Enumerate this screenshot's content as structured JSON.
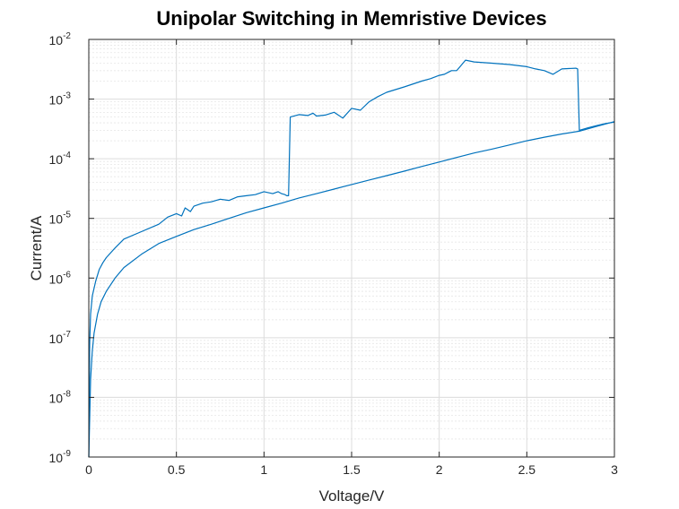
{
  "chart_data": {
    "type": "line",
    "title": "Unipolar Switching in Memristive Devices",
    "xlabel": "Voltage/V",
    "ylabel": "Current/A",
    "xlim": [
      0,
      3
    ],
    "ylim": [
      1e-09,
      0.01
    ],
    "yscale": "log",
    "grid": true,
    "minor_grid": true,
    "line_color": "#0072BD",
    "x_ticks": [
      "0",
      "0.5",
      "1",
      "1.5",
      "2",
      "2.5",
      "3"
    ],
    "x_tick_values": [
      0,
      0.5,
      1,
      1.5,
      2,
      2.5,
      3
    ],
    "y_tick_values": [
      1e-09,
      1e-08,
      1e-07,
      1e-06,
      1e-05,
      0.0001,
      0.001,
      0.01
    ],
    "y_tick_base": "10",
    "y_tick_exponents": [
      "-9",
      "-8",
      "-7",
      "-6",
      "-5",
      "-4",
      "-3",
      "-2"
    ],
    "series": [
      {
        "x": [
          0,
          0.005,
          0.01,
          0.02,
          0.04,
          0.06,
          0.08,
          0.1,
          0.15,
          0.2,
          0.3,
          0.4,
          0.45,
          0.5,
          0.53,
          0.55,
          0.58,
          0.6,
          0.65,
          0.7,
          0.75,
          0.8,
          0.85,
          0.9,
          0.95,
          1.0,
          1.05,
          1.08,
          1.1,
          1.12,
          1.13,
          1.14,
          1.15,
          1.2,
          1.25,
          1.28,
          1.3,
          1.35,
          1.4,
          1.45,
          1.5,
          1.55,
          1.6,
          1.65,
          1.7,
          1.8,
          1.9,
          1.95,
          2.0,
          2.03,
          2.05,
          2.07,
          2.1,
          2.15,
          2.2,
          2.3,
          2.4,
          2.5,
          2.55,
          2.6,
          2.65,
          2.7,
          2.78,
          2.79,
          2.8,
          2.85,
          2.9,
          2.95,
          3.0
        ],
        "y": [
          1e-09,
          8e-08,
          2.5e-07,
          5e-07,
          9e-07,
          1.4e-06,
          1.8e-06,
          2.2e-06,
          3.2e-06,
          4.5e-06,
          6e-06,
          8e-06,
          1.05e-05,
          1.2e-05,
          1.1e-05,
          1.5e-05,
          1.3e-05,
          1.6e-05,
          1.8e-05,
          1.9e-05,
          2.1e-05,
          2e-05,
          2.3e-05,
          2.4e-05,
          2.5e-05,
          2.8e-05,
          2.6e-05,
          2.8e-05,
          2.6e-05,
          2.5e-05,
          2.4e-05,
          2.4e-05,
          0.0005,
          0.00055,
          0.00053,
          0.00058,
          0.00052,
          0.00054,
          0.0006,
          0.00048,
          0.0007,
          0.00065,
          0.0009,
          0.0011,
          0.0013,
          0.0016,
          0.002,
          0.0022,
          0.0025,
          0.0026,
          0.0028,
          0.003,
          0.003,
          0.0045,
          0.0042,
          0.004,
          0.0038,
          0.0035,
          0.0032,
          0.003,
          0.0026,
          0.0032,
          0.0033,
          0.0032,
          0.0003,
          0.00033,
          0.00036,
          0.00039,
          0.00041
        ]
      },
      {
        "x": [
          0,
          0.01,
          0.02,
          0.03,
          0.05,
          0.07,
          0.1,
          0.15,
          0.2,
          0.3,
          0.4,
          0.5,
          0.6,
          0.7,
          0.8,
          0.9,
          1.0,
          1.1,
          1.2,
          1.3,
          1.4,
          1.5,
          1.6,
          1.7,
          1.8,
          1.9,
          2.0,
          2.1,
          2.2,
          2.3,
          2.4,
          2.5,
          2.6,
          2.7,
          2.8,
          2.9,
          3.0
        ],
        "y": [
          1e-09,
          2e-08,
          6e-08,
          1.2e-07,
          2.5e-07,
          4e-07,
          6e-07,
          1e-06,
          1.5e-06,
          2.5e-06,
          3.8e-06,
          5e-06,
          6.5e-06,
          8e-06,
          1e-05,
          1.25e-05,
          1.5e-05,
          1.8e-05,
          2.2e-05,
          2.6e-05,
          3.1e-05,
          3.7e-05,
          4.4e-05,
          5.2e-05,
          6.2e-05,
          7.4e-05,
          8.8e-05,
          0.000105,
          0.000125,
          0.000145,
          0.00017,
          0.0002,
          0.00023,
          0.00026,
          0.00029,
          0.00035,
          0.00042
        ]
      }
    ]
  }
}
